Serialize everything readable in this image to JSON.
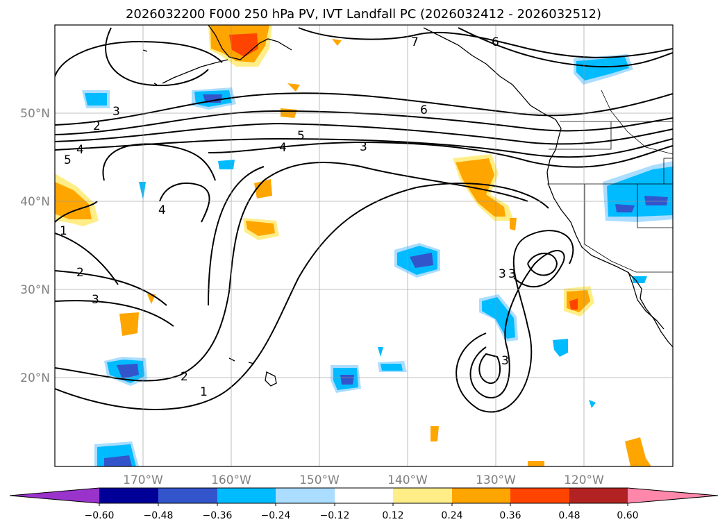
{
  "title": "2026032200 F000 250 hPa PV, IVT Landfall PC (2026032412 - 2026032512)",
  "lat_labels": [
    "50°N",
    "40°N",
    "30°N",
    "20°N"
  ],
  "lon_labels": [
    "170°W",
    "160°W",
    "150°W",
    "140°W",
    "130°W",
    "120°W"
  ],
  "colorbar": {
    "colors": [
      "#9933cc",
      "#000099",
      "#3355cc",
      "#00bbff",
      "#aaddff",
      "#ffffff",
      "#ffee88",
      "#ffa500",
      "#ff4400",
      "#b22222",
      "#ff88aa"
    ],
    "ticks": [
      "−0.60",
      "−0.48",
      "−0.36",
      "−0.24",
      "−0.12",
      "0.12",
      "0.24",
      "0.36",
      "0.48",
      "0.60"
    ]
  },
  "contour_labels": [
    "7",
    "6",
    "6",
    "5",
    "4",
    "3",
    "3",
    "2",
    "4",
    "5",
    "4",
    "1",
    "2",
    "3",
    "2",
    "1",
    "3",
    "3",
    "3"
  ]
}
